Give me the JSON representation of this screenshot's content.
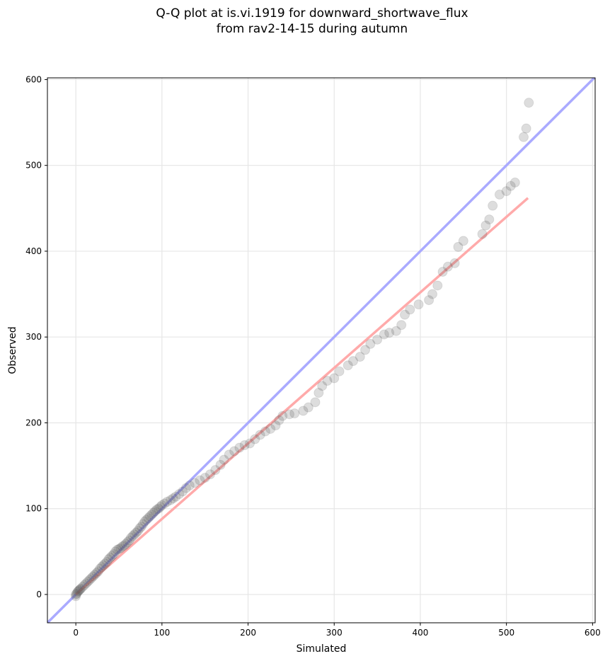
{
  "chart_data": {
    "type": "scatter",
    "title_line1": "Q-Q plot at is.vi.1919 for downward_shortwave_flux",
    "title_line2": "from rav2-14-15 during autumn",
    "xlabel": "Simulated",
    "ylabel": "Observed",
    "xlim": [
      -33,
      603
    ],
    "ylim": [
      -33,
      602
    ],
    "xticks": [
      0,
      100,
      200,
      300,
      400,
      500,
      600
    ],
    "yticks": [
      0,
      100,
      200,
      300,
      400,
      500,
      600
    ],
    "grid": true,
    "colors": {
      "points": "#555555",
      "identity_line": "#aaaaff",
      "fit_line": "#ffaaaa"
    },
    "identity_line": {
      "label": "1:1",
      "x": [
        -33,
        603
      ],
      "y": [
        -33,
        603
      ]
    },
    "fit_line": {
      "x": [
        0,
        525
      ],
      "y": [
        0,
        462
      ]
    },
    "points": [
      [
        0,
        -2
      ],
      [
        0,
        0
      ],
      [
        1,
        1
      ],
      [
        2,
        3
      ],
      [
        3,
        4
      ],
      [
        4,
        5
      ],
      [
        5,
        6
      ],
      [
        6,
        7
      ],
      [
        8,
        9
      ],
      [
        10,
        11
      ],
      [
        12,
        13
      ],
      [
        14,
        15
      ],
      [
        16,
        17
      ],
      [
        18,
        19
      ],
      [
        20,
        21
      ],
      [
        22,
        23
      ],
      [
        24,
        25
      ],
      [
        26,
        27
      ],
      [
        28,
        30
      ],
      [
        30,
        32
      ],
      [
        32,
        34
      ],
      [
        34,
        36
      ],
      [
        36,
        38
      ],
      [
        38,
        41
      ],
      [
        40,
        43
      ],
      [
        42,
        45
      ],
      [
        44,
        47
      ],
      [
        46,
        50
      ],
      [
        48,
        52
      ],
      [
        50,
        53
      ],
      [
        52,
        54
      ],
      [
        54,
        56
      ],
      [
        56,
        57
      ],
      [
        58,
        59
      ],
      [
        60,
        61
      ],
      [
        62,
        63
      ],
      [
        64,
        66
      ],
      [
        66,
        68
      ],
      [
        68,
        70
      ],
      [
        70,
        72
      ],
      [
        72,
        74
      ],
      [
        74,
        77
      ],
      [
        76,
        79
      ],
      [
        78,
        82
      ],
      [
        80,
        85
      ],
      [
        82,
        87
      ],
      [
        84,
        89
      ],
      [
        86,
        91
      ],
      [
        88,
        93
      ],
      [
        90,
        95
      ],
      [
        92,
        97
      ],
      [
        94,
        99
      ],
      [
        96,
        100
      ],
      [
        98,
        102
      ],
      [
        100,
        104
      ],
      [
        103,
        106
      ],
      [
        106,
        108
      ],
      [
        110,
        110
      ],
      [
        113,
        112
      ],
      [
        116,
        114
      ],
      [
        120,
        117
      ],
      [
        124,
        120
      ],
      [
        128,
        124
      ],
      [
        132,
        127
      ],
      [
        138,
        130
      ],
      [
        144,
        133
      ],
      [
        150,
        136
      ],
      [
        156,
        140
      ],
      [
        162,
        145
      ],
      [
        168,
        151
      ],
      [
        172,
        157
      ],
      [
        178,
        163
      ],
      [
        184,
        167
      ],
      [
        190,
        171
      ],
      [
        196,
        174
      ],
      [
        202,
        176
      ],
      [
        208,
        181
      ],
      [
        214,
        186
      ],
      [
        220,
        190
      ],
      [
        226,
        193
      ],
      [
        232,
        197
      ],
      [
        236,
        203
      ],
      [
        240,
        208
      ],
      [
        248,
        210
      ],
      [
        254,
        211
      ],
      [
        264,
        214
      ],
      [
        270,
        218
      ],
      [
        278,
        224
      ],
      [
        282,
        235
      ],
      [
        286,
        243
      ],
      [
        292,
        249
      ],
      [
        300,
        252
      ],
      [
        306,
        260
      ],
      [
        316,
        267
      ],
      [
        322,
        272
      ],
      [
        330,
        277
      ],
      [
        336,
        285
      ],
      [
        342,
        292
      ],
      [
        350,
        297
      ],
      [
        358,
        303
      ],
      [
        364,
        305
      ],
      [
        372,
        307
      ],
      [
        378,
        314
      ],
      [
        382,
        326
      ],
      [
        388,
        332
      ],
      [
        398,
        338
      ],
      [
        410,
        343
      ],
      [
        414,
        350
      ],
      [
        420,
        360
      ],
      [
        426,
        376
      ],
      [
        432,
        382
      ],
      [
        440,
        386
      ],
      [
        444,
        405
      ],
      [
        450,
        412
      ],
      [
        472,
        420
      ],
      [
        476,
        430
      ],
      [
        480,
        437
      ],
      [
        484,
        453
      ],
      [
        492,
        466
      ],
      [
        500,
        470
      ],
      [
        505,
        476
      ],
      [
        510,
        480
      ],
      [
        520,
        533
      ],
      [
        523,
        543
      ],
      [
        526,
        573
      ]
    ]
  }
}
